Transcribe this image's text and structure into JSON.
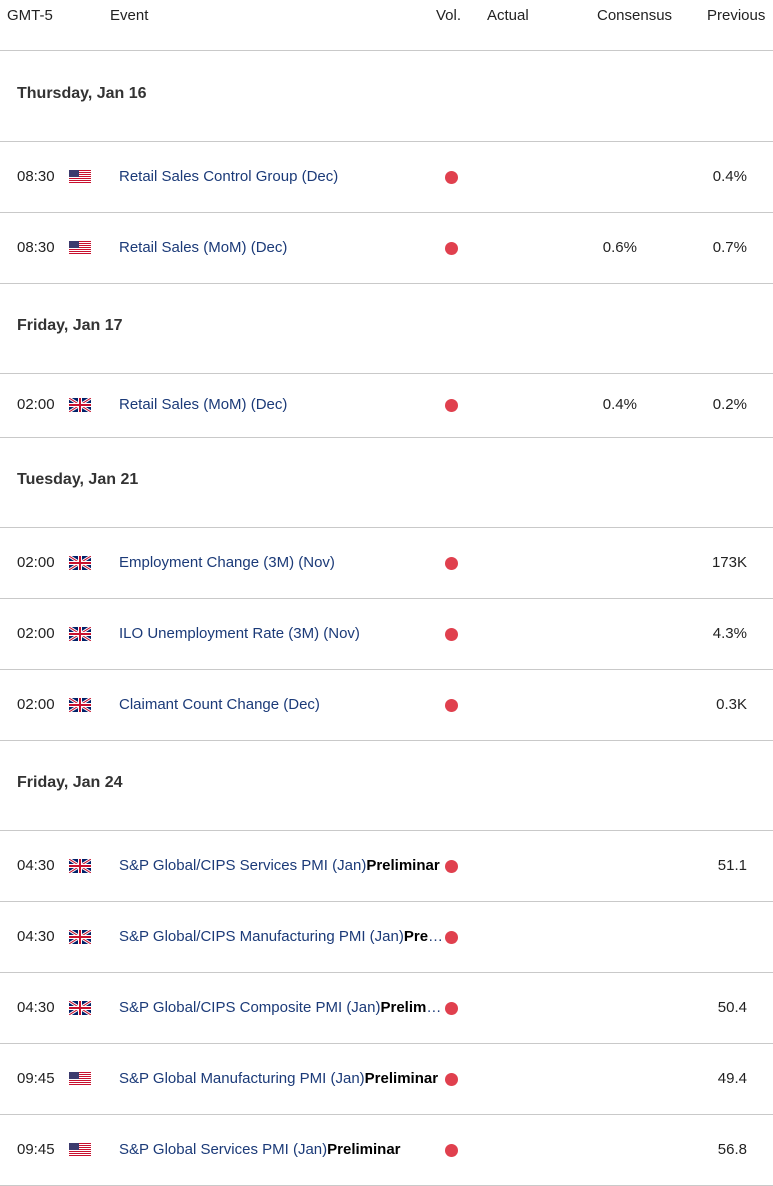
{
  "header": {
    "timezone": "GMT-5",
    "event": "Event",
    "vol": "Vol.",
    "actual": "Actual",
    "consensus": "Consensus",
    "previous": "Previous"
  },
  "colors": {
    "volatility_dot": "#e0404e",
    "event_text": "#1b3a78"
  },
  "days": [
    {
      "label": "Thursday, Jan 16",
      "events": [
        {
          "time": "08:30",
          "flag": "us-flag-icon",
          "name": "Retail Sales Control Group (Dec)",
          "tag": "",
          "actual": "",
          "consensus": "",
          "previous": "0.4%"
        },
        {
          "time": "08:30",
          "flag": "us-flag-icon",
          "name": "Retail Sales (MoM) (Dec)",
          "tag": "",
          "actual": "",
          "consensus": "0.6%",
          "previous": "0.7%"
        }
      ]
    },
    {
      "label": "Friday, Jan 17",
      "events": [
        {
          "time": "02:00",
          "flag": "uk-flag-icon",
          "name": "Retail Sales (MoM) (Dec)",
          "tag": "",
          "actual": "",
          "consensus": "0.4%",
          "previous": "0.2%"
        }
      ]
    },
    {
      "label": "Tuesday, Jan 21",
      "events": [
        {
          "time": "02:00",
          "flag": "uk-flag-icon",
          "name": "Employment Change (3M) (Nov)",
          "tag": "",
          "actual": "",
          "consensus": "",
          "previous": "173K"
        },
        {
          "time": "02:00",
          "flag": "uk-flag-icon",
          "name": "ILO Unemployment Rate (3M) (Nov)",
          "tag": "",
          "actual": "",
          "consensus": "",
          "previous": "4.3%"
        },
        {
          "time": "02:00",
          "flag": "uk-flag-icon",
          "name": "Claimant Count Change (Dec)",
          "tag": "",
          "actual": "",
          "consensus": "",
          "previous": "0.3K"
        }
      ]
    },
    {
      "label": "Friday, Jan 24",
      "events": [
        {
          "time": "04:30",
          "flag": "uk-flag-icon",
          "name": "S&P Global/CIPS Services PMI (Jan)",
          "tag": "Preliminar",
          "actual": "",
          "consensus": "",
          "previous": "51.1"
        },
        {
          "time": "04:30",
          "flag": "uk-flag-icon",
          "name": "S&P Global/CIPS Manufacturing PMI (Jan)",
          "tag": "Preliminar",
          "actual": "",
          "consensus": "",
          "previous": ""
        },
        {
          "time": "04:30",
          "flag": "uk-flag-icon",
          "name": "S&P Global/CIPS Composite PMI (Jan)",
          "tag": "Preliminar",
          "actual": "",
          "consensus": "",
          "previous": "50.4"
        },
        {
          "time": "09:45",
          "flag": "us-flag-icon",
          "name": "S&P Global Manufacturing PMI (Jan)",
          "tag": "Preliminar",
          "actual": "",
          "consensus": "",
          "previous": "49.4"
        },
        {
          "time": "09:45",
          "flag": "us-flag-icon",
          "name": "S&P Global Services PMI (Jan)",
          "tag": "Preliminar",
          "actual": "",
          "consensus": "",
          "previous": "56.8"
        }
      ]
    }
  ]
}
